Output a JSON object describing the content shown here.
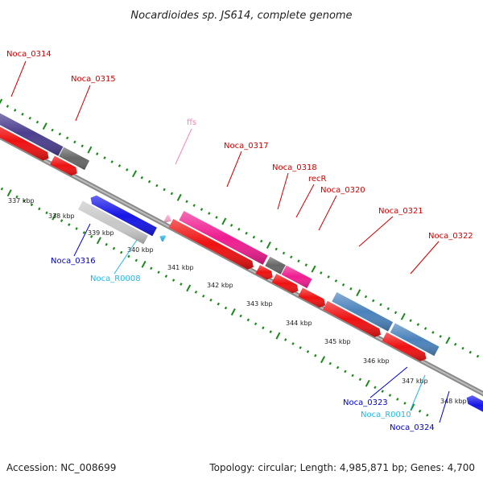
{
  "title": "Nocardioides sp. JS614, complete genome",
  "footer": {
    "accession": "Accession: NC_008699",
    "summary": "Topology: circular; Length: 4,985,871 bp; Genes: 4,700"
  },
  "colors": {
    "backbone": "#8a8a8a",
    "tick": "#1a8a1a",
    "red_label": "#cc0000",
    "blue_label": "#0000cc",
    "cyan_label": "#22b8e6",
    "pink_label": "#ee88bb"
  },
  "scale_labels": [
    "337 kbp",
    "338 kbp",
    "339 kbp",
    "340 kbp",
    "341 kbp",
    "342 kbp",
    "343 kbp",
    "344 kbp",
    "345 kbp",
    "346 kbp",
    "347 kbp",
    "348 kbp"
  ],
  "genes": [
    {
      "label": "Noca_0314",
      "strand": "plus",
      "color": "#4b3e8e",
      "label_color": "red"
    },
    {
      "label": "Noca_0315",
      "strand": "plus",
      "color": "#666666",
      "label_color": "red"
    },
    {
      "label": "Noca_0316",
      "strand": "minus",
      "color": "#1515e6",
      "label_color": "blue"
    },
    {
      "label": "Noca_R0008",
      "strand": "minus",
      "color": "#33b6e8",
      "label_color": "cyan"
    },
    {
      "label": "ffs",
      "strand": "plus",
      "color": "#f3a6cc",
      "label_color": "pink"
    },
    {
      "label": "Noca_0317",
      "strand": "plus",
      "color": "#ee1d90",
      "label_color": "red"
    },
    {
      "label": "Noca_0318",
      "strand": "plus",
      "color": "#666666",
      "label_color": "red"
    },
    {
      "label": "recR",
      "strand": "plus",
      "color": "#ee1d90",
      "label_color": "red"
    },
    {
      "label": "Noca_0320",
      "strand": "plus",
      "color": "#4a82bb",
      "label_color": "red"
    },
    {
      "label": "Noca_0321",
      "strand": "plus",
      "color": "#4a82bb",
      "label_color": "red"
    },
    {
      "label": "Noca_0322",
      "strand": "plus",
      "color": "#4a82bb",
      "label_color": "red"
    },
    {
      "label": "Noca_0323",
      "strand": "minus",
      "color": "#1515e6",
      "label_color": "blue"
    },
    {
      "label": "Noca_R0010",
      "strand": "minus",
      "color": "#33b6e8",
      "label_color": "cyan"
    },
    {
      "label": "Noca_0324",
      "strand": "minus",
      "color": "#1515e6",
      "label_color": "blue"
    }
  ],
  "cds_color": "#ee1111",
  "rna_color": "#c8c8c8"
}
